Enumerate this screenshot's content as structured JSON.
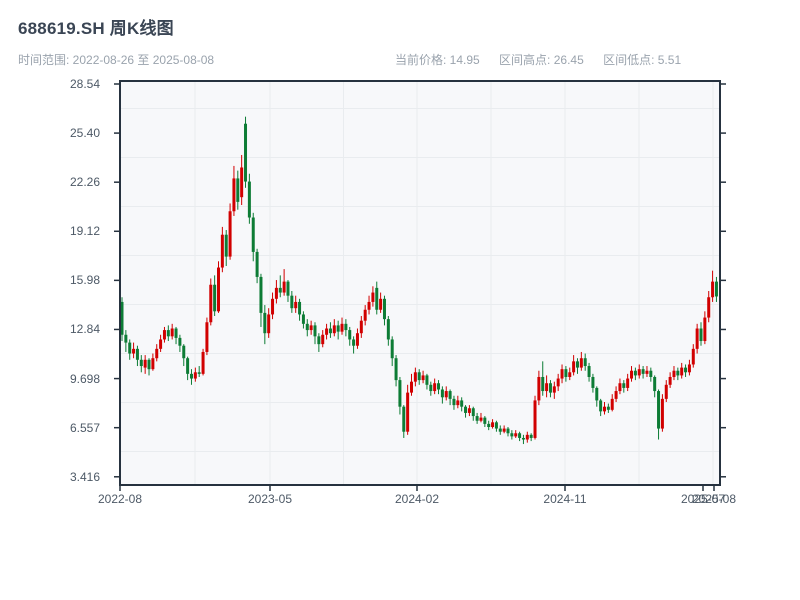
{
  "header": {
    "title": "688619.SH 周K线图",
    "range_label": "时间范围: 2022-08-26 至 2025-08-08",
    "stats": [
      "当前价格: 14.95",
      "区间高点: 26.45",
      "区间低点: 5.51"
    ]
  },
  "chart_data": {
    "type": "candlestick",
    "title": "688619.SH 周K线图",
    "frequency": "weekly",
    "date_start": "2022-08-26",
    "date_end": "2025-08-08",
    "current_price": 14.95,
    "range_high": 26.45,
    "range_low": 5.51,
    "ylim": [
      2.95,
      28.8
    ],
    "grid": "faint vertical and horizontal lines inside light plot panel",
    "legend": "none",
    "y_tick_labels": [
      "28.54",
      "25.40",
      "22.26",
      "19.12",
      "15.98",
      "12.84",
      "9.698",
      "6.557",
      "3.416"
    ],
    "x_tick_labels": [
      "2022-08",
      "2023-05",
      "2024-02",
      "2024-11",
      "2025-07",
      "2025-08"
    ],
    "colors": {
      "up_candle": "#d10000",
      "down_candle": "#0d7c35",
      "frame": "#26323f",
      "panel_bg": "#f7f8fa",
      "gridline": "#e9ecef",
      "tick_label": "#4d5966",
      "title_text": "#3a4554",
      "subtitle_text": "#9aa3ad"
    },
    "ohlc_note": "weekly candles [open,high,low,close], red=up green=down (CN convention)",
    "ohlc": [
      [
        14.6,
        14.9,
        12.1,
        12.5
      ],
      [
        12.5,
        12.8,
        11.4,
        12.0
      ],
      [
        12.0,
        12.2,
        10.9,
        11.3
      ],
      [
        11.3,
        12.0,
        11.0,
        11.6
      ],
      [
        11.6,
        11.8,
        10.5,
        10.9
      ],
      [
        10.9,
        11.2,
        10.1,
        10.5
      ],
      [
        10.4,
        11.2,
        10.0,
        10.9
      ],
      [
        10.9,
        11.0,
        9.9,
        10.3
      ],
      [
        10.3,
        11.3,
        10.2,
        11.0
      ],
      [
        11.0,
        11.9,
        10.8,
        11.6
      ],
      [
        11.6,
        12.5,
        11.4,
        12.2
      ],
      [
        12.2,
        13.0,
        12.0,
        12.8
      ],
      [
        12.8,
        13.1,
        12.1,
        12.4
      ],
      [
        12.4,
        13.2,
        12.2,
        12.9
      ],
      [
        12.9,
        13.0,
        11.9,
        12.3
      ],
      [
        12.3,
        12.5,
        11.4,
        11.8
      ],
      [
        11.8,
        11.9,
        10.5,
        11.0
      ],
      [
        11.0,
        11.1,
        9.6,
        10.0
      ],
      [
        10.0,
        10.3,
        9.3,
        9.7
      ],
      [
        9.7,
        10.4,
        9.5,
        10.1
      ],
      [
        10.1,
        10.5,
        9.8,
        10.0
      ],
      [
        10.0,
        11.6,
        9.9,
        11.4
      ],
      [
        11.4,
        13.6,
        11.2,
        13.3
      ],
      [
        13.3,
        16.1,
        13.1,
        15.7
      ],
      [
        15.7,
        16.3,
        13.7,
        14.0
      ],
      [
        14.0,
        17.2,
        13.9,
        16.8
      ],
      [
        16.8,
        19.4,
        16.5,
        18.9
      ],
      [
        18.9,
        19.2,
        16.9,
        17.5
      ],
      [
        17.5,
        20.9,
        17.3,
        20.4
      ],
      [
        20.4,
        23.3,
        20.1,
        22.5
      ],
      [
        22.5,
        23.0,
        20.5,
        21.0
      ],
      [
        21.3,
        24.0,
        20.8,
        23.2
      ],
      [
        26.0,
        26.45,
        21.9,
        22.3
      ],
      [
        22.3,
        22.8,
        19.6,
        20.0
      ],
      [
        20.0,
        20.3,
        17.2,
        17.8
      ],
      [
        17.8,
        18.0,
        15.8,
        16.2
      ],
      [
        16.2,
        16.4,
        13.0,
        13.9
      ],
      [
        13.9,
        14.4,
        11.9,
        12.6
      ],
      [
        12.6,
        14.2,
        12.3,
        13.8
      ],
      [
        13.8,
        15.2,
        13.5,
        14.8
      ],
      [
        14.8,
        16.0,
        14.5,
        15.5
      ],
      [
        15.5,
        16.3,
        14.9,
        15.2
      ],
      [
        15.2,
        16.7,
        15.0,
        15.9
      ],
      [
        15.9,
        16.0,
        14.6,
        15.0
      ],
      [
        15.0,
        15.3,
        13.9,
        14.2
      ],
      [
        14.2,
        15.0,
        13.9,
        14.6
      ],
      [
        14.6,
        14.8,
        13.4,
        13.8
      ],
      [
        13.8,
        14.0,
        12.9,
        13.2
      ],
      [
        13.2,
        13.5,
        12.4,
        12.8
      ],
      [
        12.8,
        13.4,
        12.5,
        13.1
      ],
      [
        13.1,
        13.3,
        11.9,
        12.4
      ],
      [
        12.4,
        12.6,
        11.4,
        11.9
      ],
      [
        11.9,
        12.8,
        11.7,
        12.5
      ],
      [
        12.5,
        13.2,
        12.2,
        12.9
      ],
      [
        12.9,
        13.3,
        12.3,
        12.6
      ],
      [
        12.6,
        13.5,
        12.4,
        13.1
      ],
      [
        13.1,
        13.4,
        12.2,
        12.7
      ],
      [
        12.7,
        13.6,
        12.5,
        13.2
      ],
      [
        13.2,
        13.5,
        12.4,
        12.8
      ],
      [
        12.8,
        13.0,
        11.8,
        12.2
      ],
      [
        12.2,
        12.4,
        11.3,
        11.8
      ],
      [
        11.8,
        12.9,
        11.6,
        12.6
      ],
      [
        12.6,
        13.7,
        12.3,
        13.4
      ],
      [
        13.4,
        14.4,
        13.1,
        14.1
      ],
      [
        14.1,
        15.0,
        13.8,
        14.6
      ],
      [
        14.6,
        15.6,
        14.3,
        15.2
      ],
      [
        15.5,
        15.9,
        13.8,
        14.1
      ],
      [
        14.1,
        15.2,
        13.9,
        14.8
      ],
      [
        14.8,
        15.0,
        13.1,
        13.5
      ],
      [
        13.5,
        13.7,
        11.8,
        12.2
      ],
      [
        12.2,
        12.4,
        10.5,
        11.0
      ],
      [
        11.0,
        11.2,
        9.2,
        9.6
      ],
      [
        9.6,
        9.8,
        7.4,
        7.9
      ],
      [
        7.9,
        8.0,
        5.9,
        6.3
      ],
      [
        6.3,
        9.3,
        6.1,
        8.8
      ],
      [
        8.8,
        10.0,
        8.6,
        9.5
      ],
      [
        9.5,
        10.4,
        9.2,
        10.1
      ],
      [
        10.1,
        10.3,
        9.3,
        9.6
      ],
      [
        9.6,
        10.2,
        9.4,
        9.9
      ],
      [
        9.9,
        10.0,
        9.0,
        9.3
      ],
      [
        9.3,
        9.5,
        8.6,
        8.9
      ],
      [
        8.9,
        9.7,
        8.7,
        9.4
      ],
      [
        9.4,
        9.6,
        8.7,
        9.0
      ],
      [
        9.0,
        9.2,
        8.1,
        8.5
      ],
      [
        8.5,
        9.2,
        8.3,
        8.9
      ],
      [
        8.9,
        9.0,
        8.0,
        8.4
      ],
      [
        8.4,
        8.6,
        7.7,
        8.0
      ],
      [
        8.0,
        8.6,
        7.8,
        8.3
      ],
      [
        8.3,
        8.5,
        7.6,
        7.9
      ],
      [
        7.9,
        8.0,
        7.2,
        7.5
      ],
      [
        7.5,
        8.0,
        7.3,
        7.8
      ],
      [
        7.8,
        7.9,
        7.0,
        7.3
      ],
      [
        7.3,
        7.5,
        6.8,
        7.0
      ],
      [
        7.0,
        7.5,
        6.9,
        7.2
      ],
      [
        7.2,
        7.3,
        6.6,
        6.8
      ],
      [
        6.8,
        7.0,
        6.4,
        6.6
      ],
      [
        6.6,
        7.1,
        6.5,
        6.9
      ],
      [
        6.9,
        7.0,
        6.3,
        6.5
      ],
      [
        6.5,
        6.7,
        6.1,
        6.3
      ],
      [
        6.3,
        6.7,
        6.2,
        6.5
      ],
      [
        6.5,
        6.6,
        6.0,
        6.2
      ],
      [
        6.2,
        6.4,
        5.8,
        6.0
      ],
      [
        6.0,
        6.4,
        5.9,
        6.2
      ],
      [
        6.2,
        6.3,
        5.7,
        5.9
      ],
      [
        5.9,
        6.1,
        5.51,
        5.8
      ],
      [
        5.8,
        6.3,
        5.6,
        6.1
      ],
      [
        6.1,
        6.2,
        5.7,
        5.9
      ],
      [
        5.9,
        8.6,
        5.8,
        8.3
      ],
      [
        8.3,
        10.2,
        8.0,
        9.8
      ],
      [
        9.8,
        10.8,
        8.6,
        8.9
      ],
      [
        8.9,
        9.9,
        8.5,
        9.4
      ],
      [
        9.4,
        9.6,
        8.5,
        8.8
      ],
      [
        8.8,
        9.5,
        8.4,
        9.2
      ],
      [
        9.2,
        10.0,
        8.9,
        9.7
      ],
      [
        9.7,
        10.6,
        9.4,
        10.3
      ],
      [
        10.3,
        10.5,
        9.5,
        9.8
      ],
      [
        9.8,
        10.4,
        9.6,
        10.1
      ],
      [
        10.1,
        11.2,
        9.9,
        10.8
      ],
      [
        10.8,
        11.0,
        10.0,
        10.4
      ],
      [
        10.4,
        11.4,
        10.2,
        11.0
      ],
      [
        11.0,
        11.3,
        10.2,
        10.5
      ],
      [
        10.5,
        10.7,
        9.5,
        9.8
      ],
      [
        9.8,
        10.0,
        8.8,
        9.1
      ],
      [
        9.1,
        9.2,
        7.9,
        8.3
      ],
      [
        8.3,
        8.4,
        7.3,
        7.6
      ],
      [
        7.6,
        8.2,
        7.4,
        7.9
      ],
      [
        7.9,
        8.1,
        7.5,
        7.7
      ],
      [
        7.7,
        8.7,
        7.6,
        8.4
      ],
      [
        8.4,
        9.2,
        8.2,
        8.9
      ],
      [
        8.9,
        9.7,
        8.7,
        9.4
      ],
      [
        9.4,
        9.6,
        8.8,
        9.1
      ],
      [
        9.1,
        10.0,
        8.9,
        9.7
      ],
      [
        9.7,
        10.5,
        9.5,
        10.2
      ],
      [
        10.2,
        10.4,
        9.6,
        9.9
      ],
      [
        9.9,
        10.6,
        9.7,
        10.3
      ],
      [
        10.3,
        10.5,
        9.7,
        10.0
      ],
      [
        10.0,
        10.5,
        9.8,
        10.2
      ],
      [
        10.2,
        10.4,
        9.5,
        9.8
      ],
      [
        9.8,
        9.9,
        8.5,
        8.9
      ],
      [
        8.9,
        9.0,
        5.8,
        6.5
      ],
      [
        6.5,
        8.7,
        6.3,
        8.4
      ],
      [
        8.4,
        9.6,
        8.2,
        9.3
      ],
      [
        9.3,
        10.1,
        9.1,
        9.8
      ],
      [
        9.8,
        10.5,
        9.6,
        10.2
      ],
      [
        10.2,
        10.4,
        9.6,
        9.9
      ],
      [
        9.9,
        10.7,
        9.7,
        10.4
      ],
      [
        10.4,
        10.6,
        9.8,
        10.1
      ],
      [
        10.1,
        10.9,
        9.9,
        10.6
      ],
      [
        10.6,
        11.9,
        10.4,
        11.6
      ],
      [
        11.6,
        13.2,
        11.3,
        12.9
      ],
      [
        12.9,
        13.3,
        11.8,
        12.1
      ],
      [
        12.1,
        14.0,
        11.9,
        13.6
      ],
      [
        13.6,
        15.3,
        13.3,
        14.9
      ],
      [
        14.9,
        16.6,
        14.6,
        15.9
      ],
      [
        15.9,
        16.2,
        14.6,
        14.95
      ]
    ]
  }
}
